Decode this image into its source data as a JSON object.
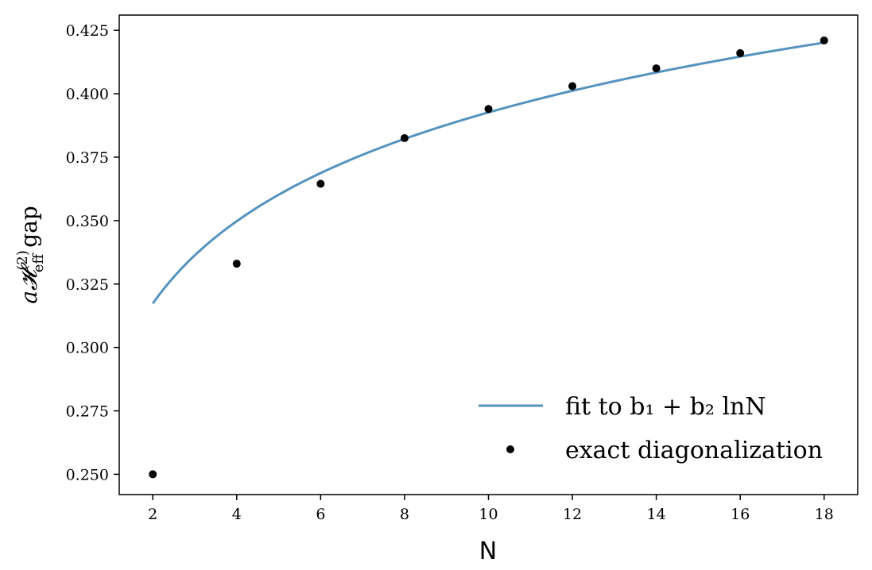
{
  "chart_data": {
    "type": "scatter",
    "xlabel": "N",
    "ylabel_main": "a𝓗",
    "ylabel_sub": "eff",
    "ylabel_sup": "(2)",
    "ylabel_tail": "gap",
    "xlim": [
      1.2,
      18.8
    ],
    "ylim": [
      0.242,
      0.431
    ],
    "xticks": [
      2,
      4,
      6,
      8,
      10,
      12,
      14,
      16,
      18
    ],
    "yticks": [
      0.25,
      0.275,
      0.3,
      0.325,
      0.35,
      0.375,
      0.4,
      0.425
    ],
    "ytick_labels": [
      "0.250",
      "0.275",
      "0.300",
      "0.325",
      "0.350",
      "0.375",
      "0.400",
      "0.425"
    ],
    "grid": false,
    "legend_position": "lower-right",
    "series": [
      {
        "name": "fit to b₁ + b₂ lnN",
        "kind": "line",
        "color": "#5593bf",
        "fit": {
          "b1": 0.2849,
          "b2": 0.04679
        },
        "x_range": [
          2,
          18
        ]
      },
      {
        "name": "exact diagonalization",
        "kind": "scatter",
        "color": "#000000",
        "x": [
          2,
          4,
          6,
          8,
          10,
          12,
          14,
          16,
          18
        ],
        "y": [
          0.25,
          0.333,
          0.3645,
          0.3825,
          0.394,
          0.403,
          0.41,
          0.416,
          0.421
        ]
      }
    ]
  }
}
